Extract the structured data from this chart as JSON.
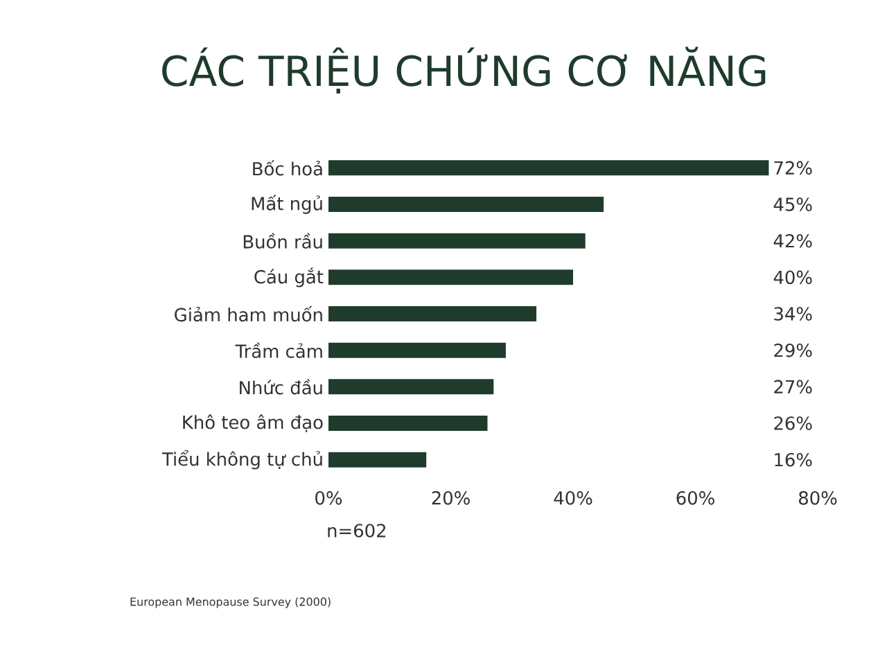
{
  "chart_data": {
    "type": "bar",
    "orientation": "horizontal",
    "title": "CÁC TRIỆU CHỨNG CƠ NĂNG",
    "categories": [
      "Bốc hoả",
      "Mất ngủ",
      "Buồn rầu",
      "Cáu gắt",
      "Giảm ham muốn",
      "Trầm cảm",
      "Nhức đầu",
      "Khô teo âm đạo",
      "Tiểu không tự chủ"
    ],
    "values": [
      72,
      45,
      42,
      40,
      34,
      29,
      27,
      26,
      16
    ],
    "value_labels": [
      "72%",
      "45%",
      "42%",
      "40%",
      "34%",
      "29%",
      "27%",
      "26%",
      "16%"
    ],
    "color": "#1f3b2c",
    "xlim": [
      0,
      80
    ],
    "xticks": [
      {
        "value": 0,
        "label": "0%"
      },
      {
        "value": 20,
        "label": "20%"
      },
      {
        "value": 40,
        "label": "40%"
      },
      {
        "value": 60,
        "label": "60%"
      },
      {
        "value": 80,
        "label": "80%"
      }
    ],
    "grid": false,
    "annotations": [
      "n=602",
      "European Menopause Survey (2000)"
    ]
  }
}
